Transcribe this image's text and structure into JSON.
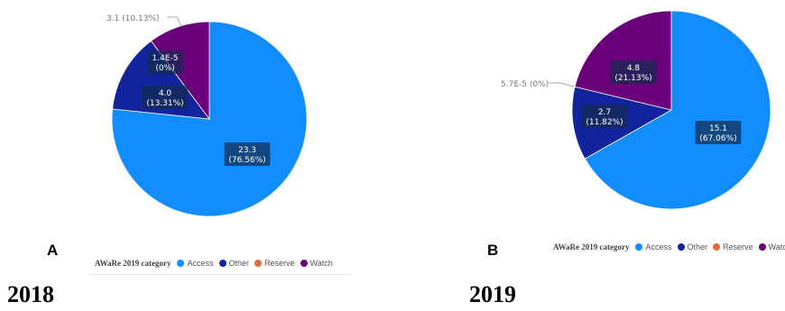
{
  "panels": [
    {
      "letter": "A",
      "year": "2018",
      "legend_title": "AWaRe 2019 category",
      "legend": [
        {
          "label": "Access",
          "color": "#118dff"
        },
        {
          "label": "Other",
          "color": "#12239e"
        },
        {
          "label": "Reserve",
          "color": "#e66c37"
        },
        {
          "label": "Watch",
          "color": "#6b007b"
        }
      ]
    },
    {
      "letter": "B",
      "year": "2019",
      "legend_title": "AWaRe 2019 category",
      "legend": [
        {
          "label": "Access",
          "color": "#118dff"
        },
        {
          "label": "Other",
          "color": "#12239e"
        },
        {
          "label": "Reserve",
          "color": "#e66c37"
        },
        {
          "label": "Watch",
          "color": "#6b007b"
        }
      ]
    }
  ],
  "chart_data": [
    {
      "type": "pie",
      "title": "",
      "legend_title": "AWaRe 2019 category",
      "legend_placement": "bottom",
      "slices": [
        {
          "category": "Access",
          "value": 23.3,
          "percent": 76.56,
          "label_value": "23.3",
          "label_percent": "(76.56%)",
          "color": "#118dff"
        },
        {
          "category": "Other",
          "value": 4.0,
          "percent": 13.31,
          "label_value": "4.0",
          "label_percent": "(13.31%)",
          "color": "#12239e"
        },
        {
          "category": "Reserve",
          "value": 1.4e-05,
          "percent": 0,
          "label_value": "1.4E-5",
          "label_percent": "(0%)",
          "color": "#e66c37"
        },
        {
          "category": "Watch",
          "value": 3.1,
          "percent": 10.13,
          "label_value": "3.1",
          "label_percent": "(10.13%)",
          "color": "#6b007b"
        }
      ]
    },
    {
      "type": "pie",
      "title": "",
      "legend_title": "AWaRe 2019 category",
      "legend_placement": "bottom",
      "slices": [
        {
          "category": "Access",
          "value": 15.1,
          "percent": 67.06,
          "label_value": "15.1",
          "label_percent": "(67.06%)",
          "color": "#118dff"
        },
        {
          "category": "Other",
          "value": 2.7,
          "percent": 11.82,
          "label_value": "2.7",
          "label_percent": "(11.82%)",
          "color": "#12239e"
        },
        {
          "category": "Reserve",
          "value": 5.7e-05,
          "percent": 0,
          "label_value": "5.7E-5",
          "label_percent": "(0%)",
          "color": "#e66c37"
        },
        {
          "category": "Watch",
          "value": 4.8,
          "percent": 21.13,
          "label_value": "4.8",
          "label_percent": "(21.13%)",
          "color": "#6b007b"
        }
      ]
    }
  ]
}
